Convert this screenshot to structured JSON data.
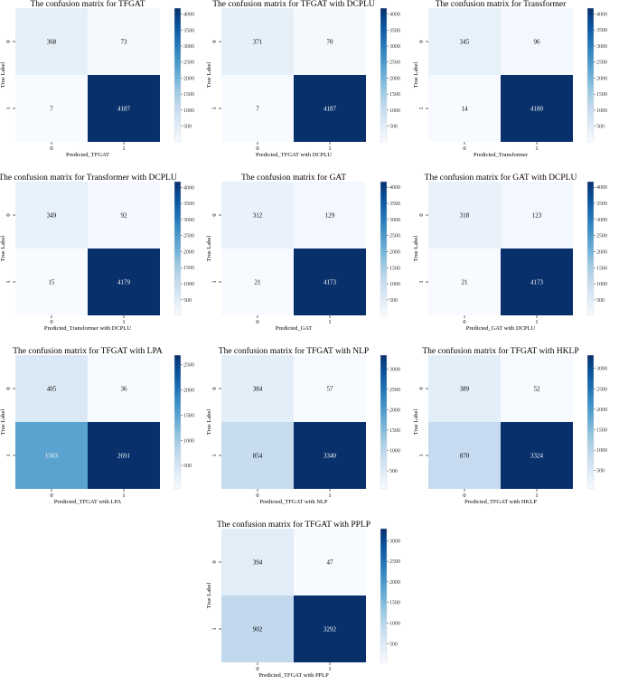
{
  "chart_data": [
    {
      "type": "heatmap",
      "title": "The confusion matrix for TFGAT",
      "xlabel": "Predicted_TFGAT",
      "ylabel": "True Label",
      "x_ticks": [
        "0",
        "1"
      ],
      "y_ticks": [
        "0",
        "1"
      ],
      "matrix": [
        [
          368,
          73
        ],
        [
          7,
          4187
        ]
      ],
      "colorbar_ticks": [
        500,
        1000,
        1500,
        2000,
        2500,
        3000,
        3500,
        4000
      ],
      "colorbar_range": [
        7,
        4187
      ],
      "colormap": "Blues"
    },
    {
      "type": "heatmap",
      "title": "The confusion matrix for TFGAT with DCPLU",
      "xlabel": "Predicted_TFGAT with DCPLU",
      "ylabel": "True Label",
      "x_ticks": [
        "0",
        "1"
      ],
      "y_ticks": [
        "0",
        "1"
      ],
      "matrix": [
        [
          371,
          70
        ],
        [
          7,
          4187
        ]
      ],
      "colorbar_ticks": [
        500,
        1000,
        1500,
        2000,
        2500,
        3000,
        3500,
        4000
      ],
      "colorbar_range": [
        7,
        4187
      ],
      "colormap": "Blues"
    },
    {
      "type": "heatmap",
      "title": "The confusion matrix for Transformer",
      "xlabel": "Predicted_Transformer",
      "ylabel": "True Label",
      "x_ticks": [
        "0",
        "1"
      ],
      "y_ticks": [
        "0",
        "1"
      ],
      "matrix": [
        [
          345,
          96
        ],
        [
          14,
          4180
        ]
      ],
      "colorbar_ticks": [
        500,
        1000,
        1500,
        2000,
        2500,
        3000,
        3500,
        4000
      ],
      "colorbar_range": [
        14,
        4180
      ],
      "colormap": "Blues"
    },
    {
      "type": "heatmap",
      "title": "The confusion matrix for Transformer with DCPLU",
      "xlabel": "Predicted_Transformer with DCPLU",
      "ylabel": "True Label",
      "x_ticks": [
        "0",
        "1"
      ],
      "y_ticks": [
        "0",
        "1"
      ],
      "matrix": [
        [
          349,
          92
        ],
        [
          15,
          4179
        ]
      ],
      "colorbar_ticks": [
        500,
        1000,
        1500,
        2000,
        2500,
        3000,
        3500,
        4000
      ],
      "colorbar_range": [
        15,
        4179
      ],
      "colormap": "Blues"
    },
    {
      "type": "heatmap",
      "title": "The confusion matrix for GAT",
      "xlabel": "Predicted_GAT",
      "ylabel": "True Label",
      "x_ticks": [
        "0",
        "1"
      ],
      "y_ticks": [
        "0",
        "1"
      ],
      "matrix": [
        [
          312,
          129
        ],
        [
          21,
          4173
        ]
      ],
      "colorbar_ticks": [
        500,
        1000,
        1500,
        2000,
        2500,
        3000,
        3500,
        4000
      ],
      "colorbar_range": [
        21,
        4173
      ],
      "colormap": "Blues"
    },
    {
      "type": "heatmap",
      "title": "The confusion matrix for GAT with DCPLU",
      "xlabel": "Predicted_GAT with DCPLU",
      "ylabel": "True Label",
      "x_ticks": [
        "0",
        "1"
      ],
      "y_ticks": [
        "0",
        "1"
      ],
      "matrix": [
        [
          318,
          123
        ],
        [
          21,
          4173
        ]
      ],
      "colorbar_ticks": [
        500,
        1000,
        1500,
        2000,
        2500,
        3000,
        3500,
        4000
      ],
      "colorbar_range": [
        21,
        4173
      ],
      "colormap": "Blues"
    },
    {
      "type": "heatmap",
      "title": "The confusion matrix for TFGAT with LPA",
      "xlabel": "Predicted_TFGAT with LPA",
      "ylabel": "True Label",
      "x_ticks": [
        "0",
        "1"
      ],
      "y_ticks": [
        "0",
        "1"
      ],
      "matrix": [
        [
          405,
          36
        ],
        [
          1503,
          2691
        ]
      ],
      "colorbar_ticks": [
        500,
        1000,
        1500,
        2000,
        2500
      ],
      "colorbar_range": [
        36,
        2691
      ],
      "colormap": "Blues"
    },
    {
      "type": "heatmap",
      "title": "The confusion matrix for TFGAT with NLP",
      "xlabel": "Predicted_TFGAT with NLP",
      "ylabel": "True Label",
      "x_ticks": [
        "0",
        "1"
      ],
      "y_ticks": [
        "0",
        "1"
      ],
      "matrix": [
        [
          384,
          57
        ],
        [
          854,
          3340
        ]
      ],
      "colorbar_ticks": [
        500,
        1000,
        1500,
        2000,
        2500,
        3000
      ],
      "colorbar_range": [
        57,
        3340
      ],
      "colormap": "Blues"
    },
    {
      "type": "heatmap",
      "title": "The confusion matrix for TFGAT with HKLP",
      "xlabel": "Predicted_TFGAT with HKLP",
      "ylabel": "True Label",
      "x_ticks": [
        "0",
        "1"
      ],
      "y_ticks": [
        "0",
        "1"
      ],
      "matrix": [
        [
          389,
          52
        ],
        [
          870,
          3324
        ]
      ],
      "colorbar_ticks": [
        500,
        1000,
        1500,
        2000,
        2500,
        3000
      ],
      "colorbar_range": [
        52,
        3324
      ],
      "colormap": "Blues"
    },
    {
      "type": "heatmap",
      "title": "The confusion matrix for TFGAT with PPLP",
      "xlabel": "Predicted_TFGAT with PPLP",
      "ylabel": "True Label",
      "x_ticks": [
        "0",
        "1"
      ],
      "y_ticks": [
        "0",
        "1"
      ],
      "matrix": [
        [
          394,
          47
        ],
        [
          902,
          3292
        ]
      ],
      "colorbar_ticks": [
        500,
        1000,
        1500,
        2000,
        2500,
        3000
      ],
      "colorbar_range": [
        47,
        3292
      ],
      "colormap": "Blues"
    }
  ]
}
